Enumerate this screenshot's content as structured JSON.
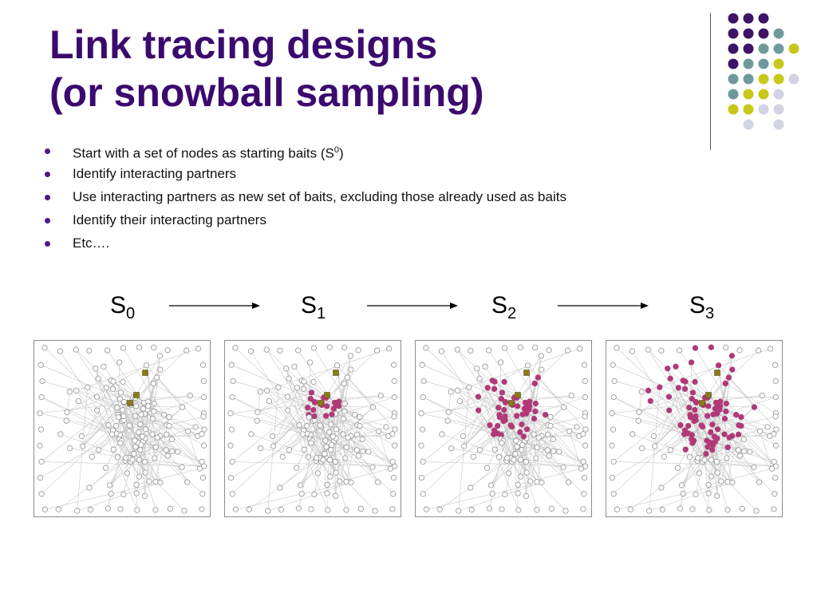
{
  "slide": {
    "title_line1": "Link tracing designs",
    "title_line2": "(or snowball sampling)",
    "bullets": [
      {
        "text": "Start with a set of nodes as starting baits (S",
        "sup": "0",
        "tail": ")"
      },
      {
        "text": "Identify interacting partners",
        "sup": "",
        "tail": ""
      },
      {
        "text": "Use interacting partners as new set of baits, excluding those already used as baits",
        "sup": "",
        "tail": ""
      },
      {
        "text": "Identify their interacting partners",
        "sup": "",
        "tail": ""
      },
      {
        "text": "Etc….",
        "sup": "",
        "tail": ""
      }
    ]
  },
  "stages": [
    {
      "letter": "S",
      "index": "0"
    },
    {
      "letter": "S",
      "index": "1"
    },
    {
      "letter": "S",
      "index": "2"
    },
    {
      "letter": "S",
      "index": "3"
    }
  ],
  "colors": {
    "title": "#3b0a6e",
    "bullet": "#4a1a86",
    "purple": "#3d1466",
    "teal": "#6f9a9c",
    "yellow": "#c8c81a",
    "lavender": "#d3d3e6",
    "bait": "#8a7a1a",
    "sampled": "#b03a78",
    "unsampled": "#9a9a9a",
    "edge": "#c8c8c8"
  },
  "decor_dot_colors": [
    [
      "purple",
      "purple",
      "purple",
      "",
      "",
      ""
    ],
    [
      "purple",
      "purple",
      "purple",
      "teal",
      "",
      ""
    ],
    [
      "purple",
      "purple",
      "teal",
      "teal",
      "yellow",
      ""
    ],
    [
      "purple",
      "teal",
      "teal",
      "yellow",
      "",
      ""
    ],
    [
      "teal",
      "teal",
      "yellow",
      "yellow",
      "lavender",
      ""
    ],
    [
      "teal",
      "yellow",
      "yellow",
      "lavender",
      "",
      ""
    ],
    [
      "yellow",
      "yellow",
      "lavender",
      "lavender",
      "",
      ""
    ],
    [
      "",
      "lavender",
      "",
      "lavender",
      "",
      ""
    ]
  ]
}
